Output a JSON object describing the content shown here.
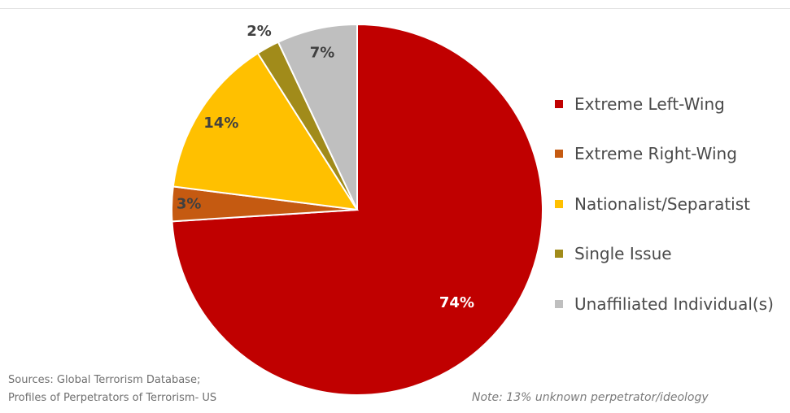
{
  "chart_data": {
    "type": "pie",
    "title": "",
    "categories": [
      "Extreme Left-Wing",
      "Extreme Right-Wing",
      "Nationalist/Separatist",
      "Single Issue",
      "Unaffiliated Individual(s)"
    ],
    "values": [
      74,
      3,
      14,
      2,
      7
    ],
    "labels": [
      "74%",
      "3%",
      "14%",
      "2%",
      "7%"
    ],
    "colors": [
      "#c00000",
      "#c55a11",
      "#ffc000",
      "#a18b1a",
      "#bfbfbf"
    ],
    "label_colors": [
      "#ffffff",
      "#404040",
      "#404040",
      "#404040",
      "#404040"
    ],
    "legend_position": "right",
    "start_angle": 0,
    "direction": "clockwise"
  },
  "footer": {
    "sources_line_1": "Sources: Global Terrorism Database;",
    "sources_line_2": "Profiles of Perpetrators of Terrorism- US",
    "note": "Note: 13% unknown perpetrator/ideology"
  }
}
